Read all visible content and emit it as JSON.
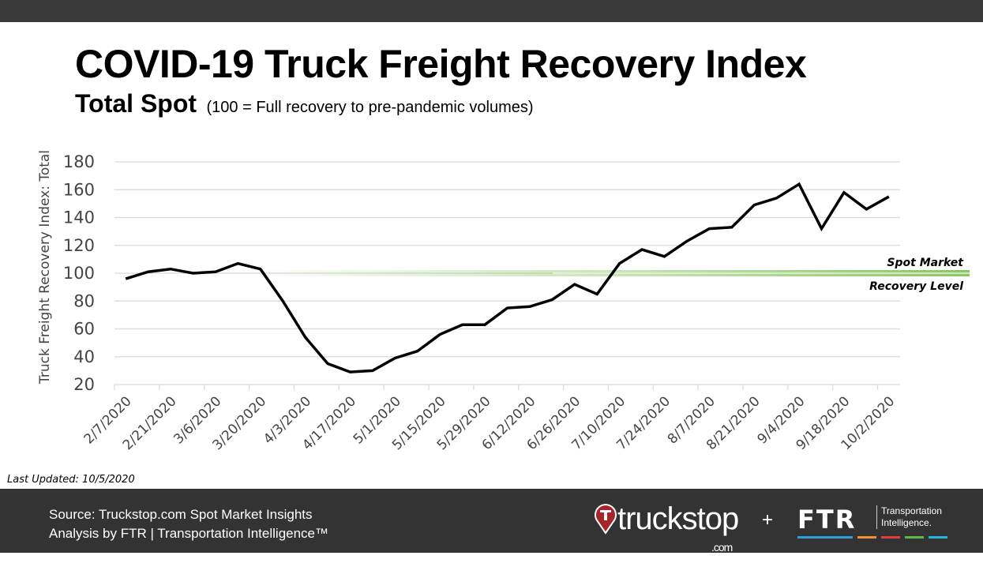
{
  "header": {
    "title": "COVID-19 Truck Freight Recovery Index",
    "subtitle": "Total Spot",
    "subtitle_note": "(100 = Full recovery to pre-pandemic volumes)"
  },
  "chart_data": {
    "type": "line",
    "ylabel": "Truck Freight Recovery Index: Total",
    "ylim": [
      20,
      180
    ],
    "yticks": [
      20,
      40,
      60,
      80,
      100,
      120,
      140,
      160,
      180
    ],
    "grid": true,
    "x": [
      "2/7/2020",
      "2/14/2020",
      "2/21/2020",
      "2/28/2020",
      "3/6/2020",
      "3/13/2020",
      "3/20/2020",
      "3/27/2020",
      "4/3/2020",
      "4/10/2020",
      "4/17/2020",
      "4/24/2020",
      "5/1/2020",
      "5/8/2020",
      "5/15/2020",
      "5/22/2020",
      "5/29/2020",
      "6/5/2020",
      "6/12/2020",
      "6/19/2020",
      "6/26/2020",
      "7/3/2020",
      "7/10/2020",
      "7/17/2020",
      "7/24/2020",
      "7/31/2020",
      "8/7/2020",
      "8/14/2020",
      "8/21/2020",
      "8/28/2020",
      "9/4/2020",
      "9/11/2020",
      "9/18/2020",
      "9/25/2020",
      "10/2/2020"
    ],
    "xtick_labels": [
      "2/7/2020",
      "2/21/2020",
      "3/6/2020",
      "3/20/2020",
      "4/3/2020",
      "4/17/2020",
      "5/1/2020",
      "5/15/2020",
      "5/29/2020",
      "6/12/2020",
      "6/26/2020",
      "7/10/2020",
      "7/24/2020",
      "8/7/2020",
      "8/21/2020",
      "9/4/2020",
      "9/18/2020",
      "10/2/2020"
    ],
    "values": [
      96,
      101,
      103,
      100,
      101,
      107,
      103,
      80,
      54,
      35,
      29,
      30,
      39,
      44,
      56,
      63,
      63,
      75,
      76,
      81,
      92,
      85,
      107,
      117,
      112,
      123,
      132,
      133,
      149,
      154,
      164,
      132,
      158,
      146,
      155
    ],
    "line_color": "#000000",
    "reference": {
      "value": 100,
      "label_line1": "Spot Market",
      "label_line2": "Recovery Level",
      "color": "#8cc665"
    }
  },
  "last_updated": "Last Updated: 10/5/2020",
  "footer": {
    "source_line1": "Source: Truckstop.com Spot Market Insights",
    "source_line2": "Analysis by FTR | Transportation Intelligence™",
    "truckstop_logo": "truckstop",
    "truckstop_com": ".com",
    "plus": "+",
    "ftr_logo": "FTR",
    "ftr_tag1": "Transportation",
    "ftr_tag2": "Intelligence.",
    "ftr_bar_colors": [
      "#2e9fd8",
      "#f0913a",
      "#d9443a",
      "#5fb84b",
      "#2ab1dd"
    ]
  }
}
